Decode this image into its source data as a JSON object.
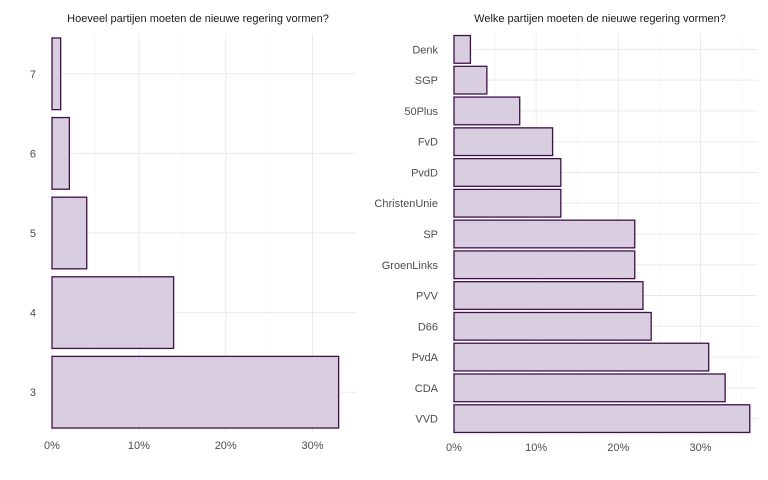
{
  "colors": {
    "bar_fill": "#d9cde0",
    "bar_stroke": "#3f0f4a",
    "grid": "#ebebeb"
  },
  "chart_data": [
    {
      "type": "bar",
      "orientation": "horizontal",
      "title": "Hoeveel partijen moeten de nieuwe regering vormen?",
      "categories": [
        "3",
        "4",
        "5",
        "6",
        "7"
      ],
      "values": [
        33,
        14,
        4,
        2,
        1
      ],
      "xlim": [
        0,
        35
      ],
      "xticks": [
        0,
        10,
        20,
        30
      ],
      "xtick_labels": [
        "0%",
        "10%",
        "20%",
        "30%"
      ],
      "grid": true
    },
    {
      "type": "bar",
      "orientation": "horizontal",
      "title": "Welke partijen moeten de nieuwe regering vormen?",
      "categories": [
        "VVD",
        "CDA",
        "PvdA",
        "D66",
        "PVV",
        "GroenLinks",
        "SP",
        "ChristenUnie",
        "PvdD",
        "FvD",
        "50Plus",
        "SGP",
        "Denk"
      ],
      "values": [
        36,
        33,
        31,
        24,
        23,
        22,
        22,
        13,
        13,
        12,
        8,
        4,
        2
      ],
      "xlim": [
        0,
        37
      ],
      "xticks": [
        0,
        10,
        20,
        30
      ],
      "xtick_labels": [
        "0%",
        "10%",
        "20%",
        "30%"
      ],
      "grid": true
    }
  ]
}
